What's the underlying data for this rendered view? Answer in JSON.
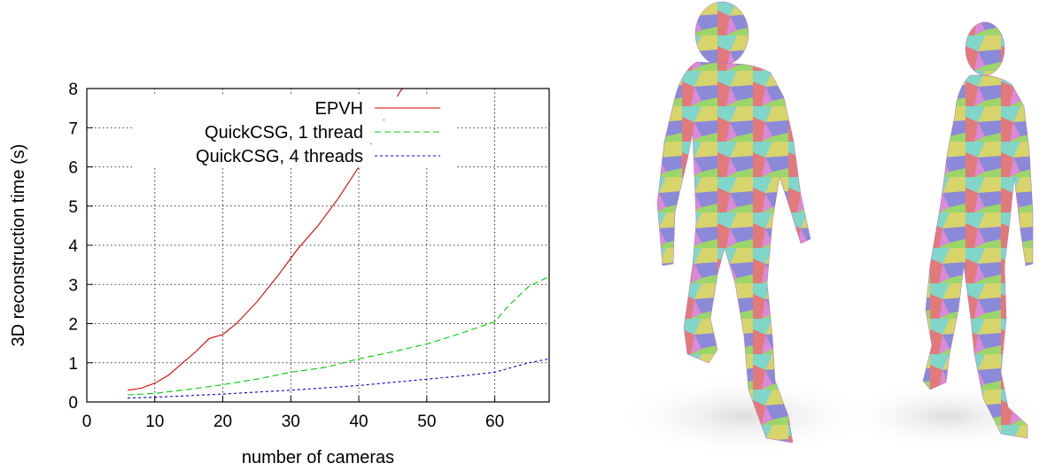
{
  "chart_data": {
    "type": "line",
    "xlabel": "number of cameras",
    "ylabel": "3D reconstruction time (s)",
    "xlim": [
      0,
      68
    ],
    "ylim": [
      0,
      8
    ],
    "xticks": [
      0,
      10,
      20,
      30,
      40,
      50,
      60
    ],
    "yticks": [
      0,
      1,
      2,
      3,
      4,
      5,
      6,
      7,
      8
    ],
    "grid": true,
    "legend_position": "top-left",
    "series": [
      {
        "name": "EPVH",
        "color": "#dd0000",
        "style": "solid",
        "x": [
          6,
          8,
          10,
          12,
          14,
          16,
          18,
          20,
          22,
          25,
          28,
          31,
          34,
          37,
          40,
          42,
          44,
          46,
          47
        ],
        "y": [
          0.3,
          0.35,
          0.48,
          0.68,
          0.98,
          1.28,
          1.62,
          1.72,
          2.0,
          2.55,
          3.2,
          3.9,
          4.5,
          5.2,
          6.0,
          6.65,
          7.3,
          7.9,
          8.15
        ]
      },
      {
        "name": "QuickCSG, 1 thread",
        "color": "#00cc00",
        "style": "dashed",
        "x": [
          6,
          10,
          15,
          20,
          25,
          30,
          35,
          40,
          45,
          50,
          55,
          60,
          62,
          65,
          68
        ],
        "y": [
          0.18,
          0.22,
          0.32,
          0.44,
          0.58,
          0.76,
          0.88,
          1.1,
          1.28,
          1.48,
          1.75,
          2.05,
          2.45,
          2.95,
          3.2
        ]
      },
      {
        "name": "QuickCSG, 4 threads",
        "color": "#0000cc",
        "style": "dotted",
        "x": [
          6,
          10,
          15,
          20,
          25,
          30,
          35,
          40,
          45,
          50,
          55,
          60,
          65,
          68
        ],
        "y": [
          0.1,
          0.12,
          0.16,
          0.2,
          0.25,
          0.3,
          0.36,
          0.42,
          0.5,
          0.58,
          0.66,
          0.76,
          1.0,
          1.1
        ]
      }
    ]
  }
}
